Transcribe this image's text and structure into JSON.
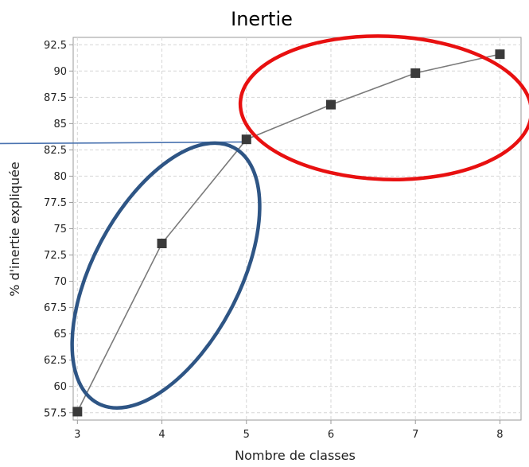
{
  "chart_data": {
    "type": "line",
    "title": "Inertie",
    "xlabel": "Nombre de classes",
    "ylabel": "% d'inertie expliquée",
    "x": [
      3,
      4,
      5,
      6,
      7,
      8
    ],
    "x_ticks": [
      "3",
      "4",
      "5",
      "6",
      "7",
      "8"
    ],
    "y_ticks": [
      "57.5",
      "60",
      "62.5",
      "65",
      "67.5",
      "70",
      "72.5",
      "75",
      "77.5",
      "80",
      "82.5",
      "85",
      "87.5",
      "90",
      "92.5"
    ],
    "xlim": [
      2.95,
      8.25
    ],
    "ylim": [
      56.8,
      93.2
    ],
    "grid": true,
    "legend": "none",
    "series": [
      {
        "values": [
          57.6,
          73.6,
          83.5,
          86.8,
          89.8,
          91.6
        ],
        "line_color": "#7a7a7a",
        "marker": "square",
        "marker_color": "#3a3a3a"
      }
    ],
    "annotations": {
      "reference_line": {
        "y": 83.1,
        "x_end": 5,
        "color": "#4a73b0"
      },
      "ellipse_low": {
        "color": "#2e5585",
        "label": ""
      },
      "ellipse_high": {
        "color": "#e81010",
        "label": ""
      }
    }
  }
}
